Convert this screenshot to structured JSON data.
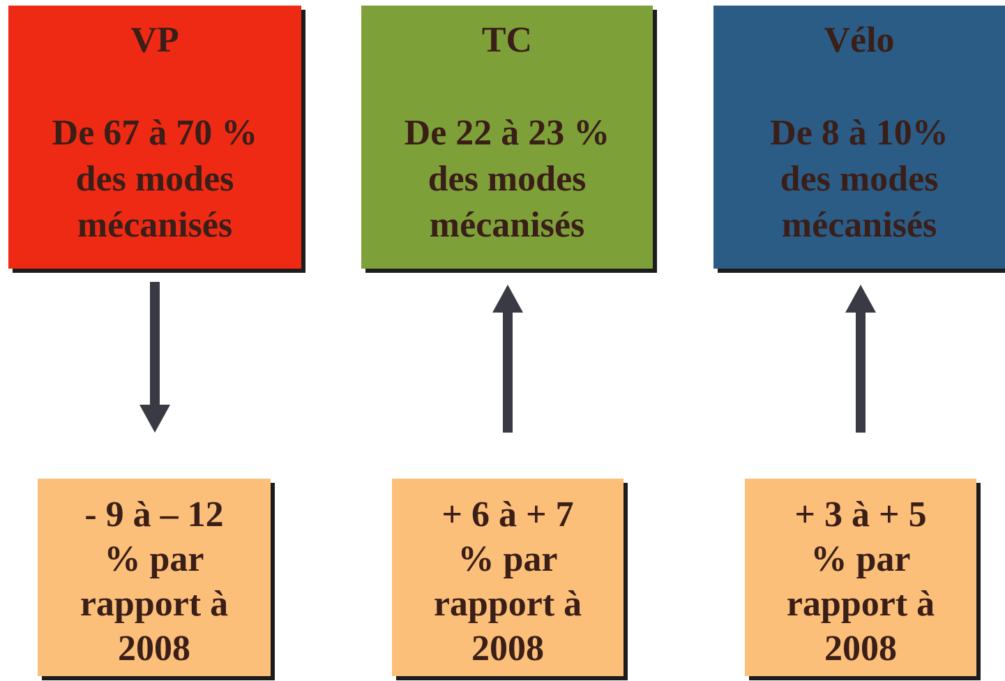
{
  "modes": [
    {
      "id": "vp",
      "title": "VP",
      "share_line": "De 67 à 70 %",
      "line2": "des modes",
      "line3": "mécanisés",
      "color": "#ee2a14",
      "direction": "down",
      "result": [
        "- 9 à – 12",
        "% par",
        "rapport à",
        "2008"
      ]
    },
    {
      "id": "tc",
      "title": "TC",
      "share_line": "De 22 à 23 %",
      "line2": "des modes",
      "line3": "mécanisés",
      "color": "#7ea039",
      "direction": "up",
      "result": [
        "+ 6 à + 7",
        "% par",
        "rapport à",
        "2008"
      ]
    },
    {
      "id": "velo",
      "title": "Vélo",
      "share_line": "De 8 à 10%",
      "line2": "des modes",
      "line3": "mécanisés",
      "color": "#2b5c86",
      "direction": "up",
      "result": [
        "+ 3 à + 5",
        "% par",
        "rapport à",
        "2008"
      ]
    }
  ],
  "colors": {
    "result_box": "#fbbf79",
    "arrow": "#3a3a44",
    "text": "#3a1e18"
  }
}
